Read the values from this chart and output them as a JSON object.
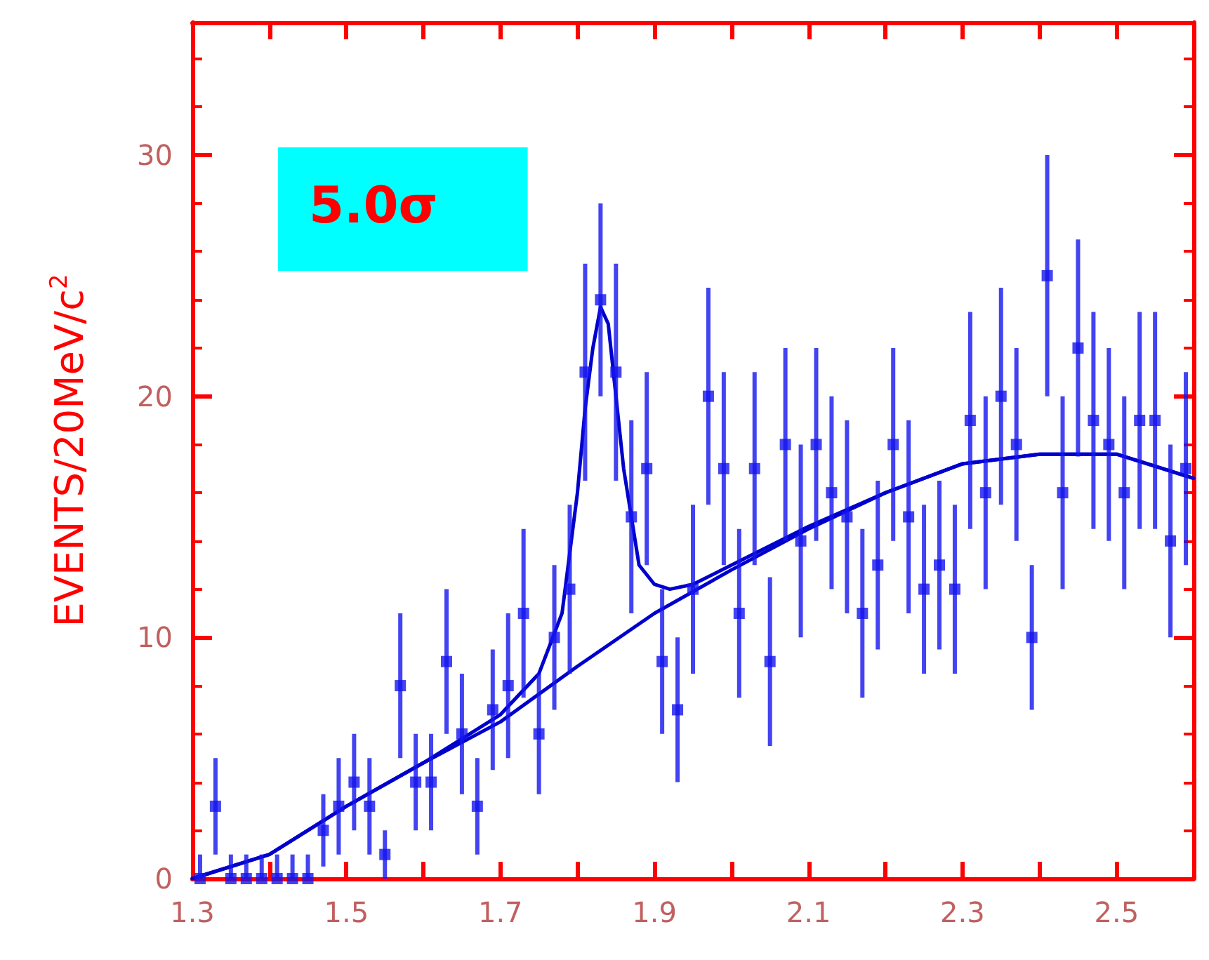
{
  "chart_data": {
    "type": "scatter",
    "ylabel": "EVENTS/20MeV/c$^{2}$",
    "annotations": [
      "5.0σ"
    ],
    "xlim": [
      1.3,
      2.6
    ],
    "xticks": [
      1.3,
      {
        "value": 1.4,
        "label": null
      },
      1.5,
      {
        "value": 1.6,
        "label": null
      },
      1.7,
      {
        "value": 1.8,
        "label": null
      },
      1.9,
      {
        "value": 2.0,
        "label": null
      },
      2.1,
      {
        "value": 2.2,
        "label": null
      },
      2.3,
      {
        "value": 2.4,
        "label": null
      },
      2.5
    ],
    "ylim": [
      0,
      35.5
    ],
    "yticks": [
      0,
      10,
      20,
      30
    ],
    "grid": false,
    "marker": "square",
    "series": [
      {
        "color": "#1414ee",
        "x": [
          1.31,
          1.33,
          1.35,
          1.37,
          1.39,
          1.41,
          1.43,
          1.45,
          1.47,
          1.49,
          1.51,
          1.53,
          1.55,
          1.57,
          1.59,
          1.61,
          1.63,
          1.65,
          1.67,
          1.69,
          1.71,
          1.73,
          1.75,
          1.77,
          1.79,
          1.81,
          1.83,
          1.85,
          1.87,
          1.89,
          1.91,
          1.93,
          1.95,
          1.97,
          1.99,
          2.01,
          2.03,
          2.05,
          2.07,
          2.09,
          2.11,
          2.13,
          2.15,
          2.17,
          2.19,
          2.21,
          2.23,
          2.25,
          2.27,
          2.29,
          2.31,
          2.33,
          2.35,
          2.37,
          2.39,
          2.41,
          2.43,
          2.45,
          2.47,
          2.49,
          2.51,
          2.53,
          2.55,
          2.57,
          2.59
        ],
        "values": [
          0,
          3,
          0,
          0,
          0,
          0,
          0,
          0,
          2,
          3,
          4,
          3,
          1,
          8,
          4,
          4,
          9,
          6,
          3,
          7,
          8,
          11,
          6,
          10,
          12,
          21,
          24,
          21,
          15,
          17,
          9,
          7,
          12,
          20,
          17,
          11,
          17,
          9,
          18,
          14,
          18,
          16,
          15,
          11,
          13,
          18,
          15,
          12,
          13,
          12,
          19,
          16,
          20,
          18,
          10,
          25,
          16,
          22,
          19,
          18,
          16,
          19,
          19,
          14,
          17
        ],
        "errors": [
          [
            0,
            1
          ],
          2,
          [
            0,
            1
          ],
          [
            0,
            1
          ],
          [
            0,
            1
          ],
          [
            0,
            1
          ],
          [
            0,
            1
          ],
          [
            0,
            1
          ],
          1.5,
          2,
          2,
          2,
          1,
          3,
          2,
          2,
          3,
          2.5,
          2,
          2.5,
          3,
          3.5,
          2.5,
          3,
          3.5,
          4.5,
          4,
          4.5,
          4,
          4,
          3,
          3,
          3.5,
          4.5,
          4,
          3.5,
          4,
          3.5,
          4,
          4,
          4,
          4,
          4,
          3.5,
          3.5,
          4,
          4,
          3.5,
          3.5,
          3.5,
          4.5,
          4,
          4.5,
          4,
          3,
          5,
          4,
          4.5,
          4.5,
          4,
          4,
          4.5,
          4.5,
          4,
          4
        ]
      },
      {
        "type": "line",
        "color": "#0000cc",
        "marker": "none",
        "x": [
          1.3,
          1.4,
          1.5,
          1.6,
          1.7,
          1.75,
          1.78,
          1.8,
          1.81,
          1.82,
          1.83,
          1.84,
          1.85,
          1.86,
          1.88,
          1.9,
          1.92,
          1.95,
          2.0,
          2.1,
          2.2,
          2.3,
          2.4,
          2.5,
          2.6
        ],
        "values": [
          0,
          1,
          3,
          4.8,
          6.8,
          8.5,
          11,
          16,
          19.5,
          22,
          23.7,
          23,
          20,
          17,
          13,
          12.2,
          12,
          12.2,
          13,
          14.6,
          16,
          17.2,
          17.6,
          17.6,
          16.6
        ]
      },
      {
        "type": "line",
        "color": "#0000cc",
        "marker": "none",
        "x": [
          1.3,
          1.4,
          1.5,
          1.6,
          1.7,
          1.8,
          1.9,
          2.0,
          2.1,
          2.2,
          2.3,
          2.4,
          2.5,
          2.6
        ],
        "values": [
          0,
          1,
          3,
          4.8,
          6.5,
          8.8,
          11,
          12.8,
          14.5,
          16,
          17.2,
          17.6,
          17.6,
          16.6
        ]
      }
    ]
  }
}
